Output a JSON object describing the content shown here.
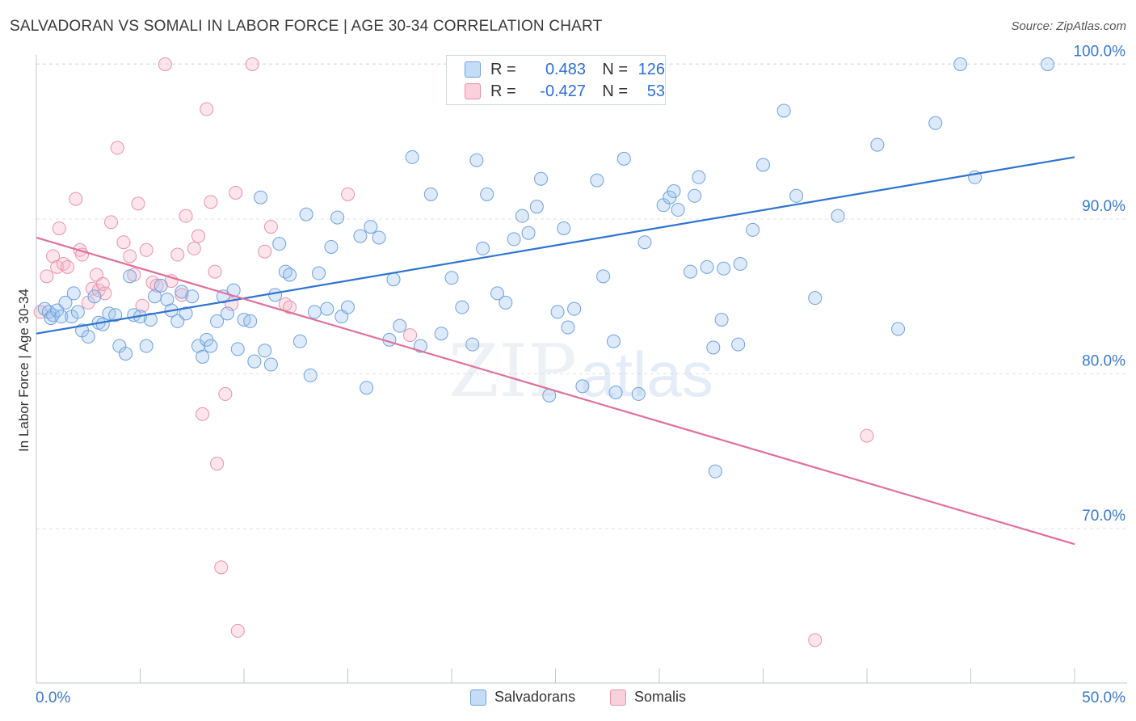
{
  "header": {
    "title": "SALVADORAN VS SOMALI IN LABOR FORCE | AGE 30-34 CORRELATION CHART",
    "source": "Source: ZipAtlas.com"
  },
  "watermark": {
    "zip": "ZIP",
    "atlas": "atlas"
  },
  "stats": {
    "rows": [
      {
        "r_label": "R =",
        "r_value": "0.483",
        "n_label": "N =",
        "n_value": "126",
        "color": "#9dc3ef"
      },
      {
        "r_label": "R =",
        "r_value": "-0.427",
        "n_label": "N =",
        "n_value": "53",
        "color": "#f5b6c8"
      }
    ]
  },
  "legend": {
    "items": [
      {
        "label": "Salvadorans",
        "color": "#9dc3ef"
      },
      {
        "label": "Somalis",
        "color": "#f5b6c8"
      }
    ]
  },
  "chart_data": {
    "type": "scatter",
    "title": "SALVADORAN VS SOMALI IN LABOR FORCE | AGE 30-34 CORRELATION CHART",
    "xlabel": "",
    "ylabel": "In Labor Force | Age 30-34",
    "xlim": [
      0,
      50
    ],
    "ylim": [
      61,
      104
    ],
    "x_tick_labels": [
      "0.0%",
      "50.0%"
    ],
    "y_ticks": [
      70,
      80,
      90,
      100
    ],
    "y_tick_labels": [
      "70.0%",
      "80.0%",
      "90.0%",
      "100.0%"
    ],
    "grid": true,
    "legend_position": "bottom",
    "colors": {
      "salvadorans": "#2f74d0",
      "somalis": "#e0709a"
    },
    "series": [
      {
        "name": "Salvadorans",
        "trend": {
          "x": [
            0,
            50
          ],
          "y": [
            82.6,
            94.0
          ]
        },
        "points": [
          [
            0.4,
            84.2
          ],
          [
            0.6,
            84.0
          ],
          [
            0.7,
            83.6
          ],
          [
            0.8,
            83.8
          ],
          [
            1.0,
            84.1
          ],
          [
            1.2,
            83.7
          ],
          [
            1.4,
            84.6
          ],
          [
            1.7,
            83.7
          ],
          [
            1.8,
            85.2
          ],
          [
            2.0,
            84.0
          ],
          [
            2.2,
            82.8
          ],
          [
            2.5,
            82.4
          ],
          [
            2.8,
            85.0
          ],
          [
            3.0,
            83.3
          ],
          [
            3.2,
            83.2
          ],
          [
            3.5,
            83.9
          ],
          [
            3.8,
            83.8
          ],
          [
            4.0,
            81.8
          ],
          [
            4.3,
            81.3
          ],
          [
            4.5,
            86.3
          ],
          [
            4.7,
            83.8
          ],
          [
            5.0,
            83.7
          ],
          [
            5.3,
            81.8
          ],
          [
            5.5,
            83.5
          ],
          [
            5.7,
            85.0
          ],
          [
            6.0,
            85.7
          ],
          [
            6.3,
            84.8
          ],
          [
            6.5,
            84.1
          ],
          [
            6.8,
            83.4
          ],
          [
            7.0,
            85.3
          ],
          [
            7.2,
            83.9
          ],
          [
            7.5,
            85.0
          ],
          [
            7.8,
            81.8
          ],
          [
            8.0,
            81.1
          ],
          [
            8.2,
            82.2
          ],
          [
            8.4,
            81.8
          ],
          [
            8.7,
            83.4
          ],
          [
            9.0,
            85.0
          ],
          [
            9.2,
            83.9
          ],
          [
            9.5,
            85.4
          ],
          [
            9.7,
            81.6
          ],
          [
            10.0,
            83.5
          ],
          [
            10.3,
            83.4
          ],
          [
            10.5,
            80.8
          ],
          [
            10.8,
            91.4
          ],
          [
            11.0,
            81.5
          ],
          [
            11.3,
            80.6
          ],
          [
            11.5,
            85.1
          ],
          [
            11.7,
            88.4
          ],
          [
            12.0,
            86.6
          ],
          [
            12.2,
            86.4
          ],
          [
            12.7,
            82.1
          ],
          [
            13.0,
            90.3
          ],
          [
            13.2,
            79.9
          ],
          [
            13.4,
            84.0
          ],
          [
            13.6,
            86.5
          ],
          [
            14.0,
            84.2
          ],
          [
            14.2,
            88.2
          ],
          [
            14.5,
            90.1
          ],
          [
            14.7,
            83.7
          ],
          [
            15.0,
            84.3
          ],
          [
            15.6,
            88.9
          ],
          [
            15.9,
            79.1
          ],
          [
            16.1,
            89.5
          ],
          [
            16.5,
            88.8
          ],
          [
            17.0,
            82.2
          ],
          [
            17.2,
            86.1
          ],
          [
            17.5,
            83.1
          ],
          [
            18.1,
            94.0
          ],
          [
            18.5,
            81.8
          ],
          [
            19.0,
            91.6
          ],
          [
            19.5,
            82.6
          ],
          [
            20.0,
            86.2
          ],
          [
            20.5,
            84.3
          ],
          [
            21.0,
            81.9
          ],
          [
            21.2,
            93.8
          ],
          [
            21.5,
            88.1
          ],
          [
            21.7,
            91.6
          ],
          [
            22.2,
            85.2
          ],
          [
            22.6,
            84.6
          ],
          [
            23.0,
            88.7
          ],
          [
            23.4,
            90.2
          ],
          [
            23.7,
            89.1
          ],
          [
            24.1,
            90.8
          ],
          [
            24.3,
            92.6
          ],
          [
            24.7,
            78.6
          ],
          [
            25.1,
            84.0
          ],
          [
            25.4,
            89.4
          ],
          [
            25.6,
            83.0
          ],
          [
            25.9,
            84.2
          ],
          [
            26.3,
            79.2
          ],
          [
            27.0,
            92.5
          ],
          [
            27.3,
            86.3
          ],
          [
            27.8,
            82.1
          ],
          [
            27.9,
            78.8
          ],
          [
            28.3,
            93.9
          ],
          [
            29.0,
            78.7
          ],
          [
            29.3,
            88.5
          ],
          [
            30.2,
            90.9
          ],
          [
            30.5,
            91.4
          ],
          [
            30.7,
            91.8
          ],
          [
            30.9,
            90.6
          ],
          [
            31.5,
            86.6
          ],
          [
            31.7,
            91.5
          ],
          [
            31.9,
            92.7
          ],
          [
            32.3,
            86.9
          ],
          [
            32.6,
            81.7
          ],
          [
            32.7,
            73.7
          ],
          [
            33.0,
            83.5
          ],
          [
            33.1,
            86.8
          ],
          [
            33.8,
            81.9
          ],
          [
            33.9,
            87.1
          ],
          [
            34.5,
            89.3
          ],
          [
            35.0,
            93.5
          ],
          [
            36.0,
            97.0
          ],
          [
            36.6,
            91.5
          ],
          [
            37.5,
            84.9
          ],
          [
            38.6,
            90.2
          ],
          [
            40.5,
            94.8
          ],
          [
            41.5,
            82.9
          ],
          [
            43.3,
            96.2
          ],
          [
            44.5,
            100.0
          ],
          [
            45.2,
            92.7
          ],
          [
            48.7,
            100.0
          ]
        ]
      },
      {
        "name": "Somalis",
        "trend": {
          "x": [
            0,
            50
          ],
          "y": [
            88.8,
            69.0
          ]
        },
        "points": [
          [
            0.2,
            84.0
          ],
          [
            0.5,
            86.3
          ],
          [
            0.8,
            87.6
          ],
          [
            1.0,
            86.9
          ],
          [
            1.1,
            89.4
          ],
          [
            1.3,
            87.1
          ],
          [
            1.5,
            86.9
          ],
          [
            1.9,
            91.3
          ],
          [
            2.1,
            88.0
          ],
          [
            2.2,
            87.7
          ],
          [
            2.5,
            84.6
          ],
          [
            2.7,
            85.5
          ],
          [
            2.9,
            86.4
          ],
          [
            3.0,
            85.4
          ],
          [
            3.2,
            85.8
          ],
          [
            3.3,
            85.2
          ],
          [
            3.6,
            89.8
          ],
          [
            3.9,
            94.6
          ],
          [
            4.2,
            88.5
          ],
          [
            4.5,
            87.6
          ],
          [
            4.7,
            86.4
          ],
          [
            4.9,
            91.0
          ],
          [
            5.1,
            84.4
          ],
          [
            5.3,
            88.0
          ],
          [
            5.6,
            85.9
          ],
          [
            5.8,
            85.7
          ],
          [
            6.2,
            100.0
          ],
          [
            6.5,
            86.0
          ],
          [
            6.8,
            87.7
          ],
          [
            7.0,
            85.1
          ],
          [
            7.2,
            90.2
          ],
          [
            7.6,
            88.1
          ],
          [
            7.8,
            88.9
          ],
          [
            8.0,
            77.4
          ],
          [
            8.2,
            97.1
          ],
          [
            8.4,
            91.1
          ],
          [
            8.6,
            86.6
          ],
          [
            8.7,
            74.2
          ],
          [
            8.9,
            67.5
          ],
          [
            9.1,
            78.7
          ],
          [
            9.4,
            84.5
          ],
          [
            9.6,
            91.7
          ],
          [
            9.7,
            63.4
          ],
          [
            10.4,
            100.0
          ],
          [
            11.0,
            87.9
          ],
          [
            11.3,
            89.5
          ],
          [
            12.0,
            84.5
          ],
          [
            12.2,
            84.3
          ],
          [
            15.0,
            91.6
          ],
          [
            18.0,
            82.5
          ],
          [
            37.5,
            62.8
          ],
          [
            40.0,
            76.0
          ]
        ]
      }
    ]
  }
}
